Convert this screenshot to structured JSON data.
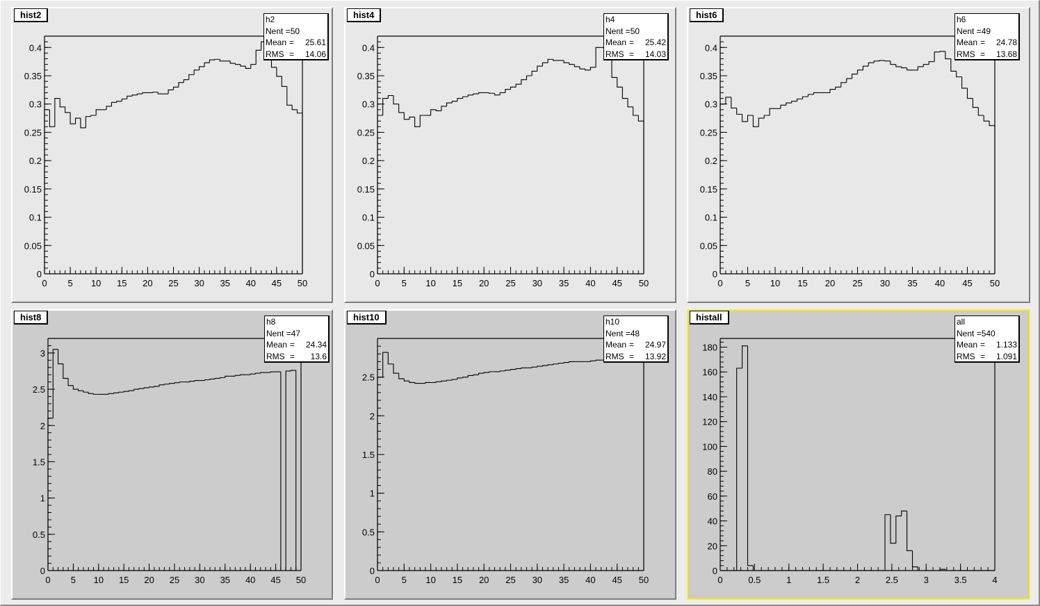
{
  "canvas": {
    "colors": {
      "light_pad": "#e8e8e8",
      "dark_pad": "#cccccc",
      "selected_border": "#f3ea5a"
    }
  },
  "chart_data": [
    {
      "pad_title": "hist2",
      "type": "histogram",
      "shade": "light",
      "stats": {
        "name": "h2",
        "Nent": "50",
        "Mean": "25.61",
        "RMS": "14.06"
      },
      "xlim": [
        0,
        50
      ],
      "ylim": [
        0,
        0.42
      ],
      "xticks": [
        0,
        5,
        10,
        15,
        20,
        25,
        30,
        35,
        40,
        45,
        50
      ],
      "xticklabels": [
        "0",
        "5",
        "10",
        "15",
        "20",
        "25",
        "30",
        "35",
        "40",
        "45",
        "50"
      ],
      "yticks": [
        0,
        0.05,
        0.1,
        0.15,
        0.2,
        0.25,
        0.3,
        0.35,
        0.4
      ],
      "yticklabels": [
        "0",
        "0.05",
        "0.1",
        "0.15",
        "0.2",
        "0.25",
        "0.3",
        "0.35",
        "0.4"
      ],
      "bins": [
        0,
        1,
        2,
        3,
        4,
        5,
        6,
        7,
        8,
        9,
        10,
        11,
        12,
        13,
        14,
        15,
        16,
        17,
        18,
        19,
        20,
        21,
        22,
        23,
        24,
        25,
        26,
        27,
        28,
        29,
        30,
        31,
        32,
        33,
        34,
        35,
        36,
        37,
        38,
        39,
        40,
        41,
        42,
        43,
        44,
        45,
        46,
        47,
        48,
        49,
        50
      ],
      "values": [
        0.29,
        0.26,
        0.31,
        0.295,
        0.285,
        0.265,
        0.275,
        0.258,
        0.278,
        0.28,
        0.29,
        0.29,
        0.296,
        0.303,
        0.305,
        0.309,
        0.314,
        0.316,
        0.318,
        0.32,
        0.32,
        0.321,
        0.318,
        0.318,
        0.325,
        0.33,
        0.338,
        0.343,
        0.352,
        0.36,
        0.366,
        0.373,
        0.378,
        0.379,
        0.376,
        0.376,
        0.372,
        0.37,
        0.367,
        0.363,
        0.37,
        0.395,
        0.41,
        0.385,
        0.365,
        0.349,
        0.331,
        0.298,
        0.29,
        0.284
      ]
    },
    {
      "pad_title": "hist4",
      "type": "histogram",
      "shade": "light",
      "stats": {
        "name": "h4",
        "Nent": "50",
        "Mean": "25.42",
        "RMS": "14.03"
      },
      "xlim": [
        0,
        50
      ],
      "ylim": [
        0,
        0.42
      ],
      "xticks": [
        0,
        5,
        10,
        15,
        20,
        25,
        30,
        35,
        40,
        45,
        50
      ],
      "xticklabels": [
        "0",
        "5",
        "10",
        "15",
        "20",
        "25",
        "30",
        "35",
        "40",
        "45",
        "50"
      ],
      "yticks": [
        0,
        0.05,
        0.1,
        0.15,
        0.2,
        0.25,
        0.3,
        0.35,
        0.4
      ],
      "yticklabels": [
        "0",
        "0.05",
        "0.1",
        "0.15",
        "0.2",
        "0.25",
        "0.3",
        "0.35",
        "0.4"
      ],
      "bins": [
        0,
        1,
        2,
        3,
        4,
        5,
        6,
        7,
        8,
        9,
        10,
        11,
        12,
        13,
        14,
        15,
        16,
        17,
        18,
        19,
        20,
        21,
        22,
        23,
        24,
        25,
        26,
        27,
        28,
        29,
        30,
        31,
        32,
        33,
        34,
        35,
        36,
        37,
        38,
        39,
        40,
        41,
        42,
        43,
        44,
        45,
        46,
        47,
        48,
        49,
        50
      ],
      "values": [
        0.28,
        0.31,
        0.315,
        0.3,
        0.285,
        0.273,
        0.277,
        0.26,
        0.28,
        0.28,
        0.29,
        0.288,
        0.296,
        0.302,
        0.305,
        0.31,
        0.313,
        0.316,
        0.318,
        0.32,
        0.32,
        0.319,
        0.316,
        0.32,
        0.326,
        0.33,
        0.335,
        0.343,
        0.35,
        0.358,
        0.367,
        0.373,
        0.379,
        0.377,
        0.377,
        0.373,
        0.37,
        0.366,
        0.362,
        0.36,
        0.365,
        0.4,
        0.4,
        0.38,
        0.347,
        0.33,
        0.31,
        0.295,
        0.28,
        0.27
      ]
    },
    {
      "pad_title": "hist6",
      "type": "histogram",
      "shade": "light",
      "stats": {
        "name": "h6",
        "Nent": "49",
        "Mean": "24.78",
        "RMS": "13.68"
      },
      "xlim": [
        0,
        50
      ],
      "ylim": [
        0,
        0.42
      ],
      "xticks": [
        0,
        5,
        10,
        15,
        20,
        25,
        30,
        35,
        40,
        45,
        50
      ],
      "xticklabels": [
        "0",
        "5",
        "10",
        "15",
        "20",
        "25",
        "30",
        "35",
        "40",
        "45",
        "50"
      ],
      "yticks": [
        0,
        0.05,
        0.1,
        0.15,
        0.2,
        0.25,
        0.3,
        0.35,
        0.4
      ],
      "yticklabels": [
        "0",
        "0.05",
        "0.1",
        "0.15",
        "0.2",
        "0.25",
        "0.3",
        "0.35",
        "0.4"
      ],
      "bins": [
        0,
        1,
        2,
        3,
        4,
        5,
        6,
        7,
        8,
        9,
        10,
        11,
        12,
        13,
        14,
        15,
        16,
        17,
        18,
        19,
        20,
        21,
        22,
        23,
        24,
        25,
        26,
        27,
        28,
        29,
        30,
        31,
        32,
        33,
        34,
        35,
        36,
        37,
        38,
        39,
        40,
        41,
        42,
        43,
        44,
        45,
        46,
        47,
        48,
        49,
        50
      ],
      "values": [
        0.3,
        0.312,
        0.293,
        0.282,
        0.269,
        0.28,
        0.26,
        0.275,
        0.28,
        0.292,
        0.292,
        0.298,
        0.302,
        0.305,
        0.309,
        0.313,
        0.317,
        0.32,
        0.32,
        0.32,
        0.326,
        0.33,
        0.338,
        0.345,
        0.353,
        0.36,
        0.367,
        0.373,
        0.376,
        0.377,
        0.376,
        0.37,
        0.366,
        0.364,
        0.36,
        0.36,
        0.366,
        0.37,
        0.375,
        0.392,
        0.393,
        0.38,
        0.358,
        0.348,
        0.328,
        0.31,
        0.294,
        0.28,
        0.27,
        0.262,
        0
      ]
    },
    {
      "pad_title": "hist8",
      "type": "histogram",
      "shade": "dark",
      "stats": {
        "name": "h8",
        "Nent": "47",
        "Mean": "24.34",
        "RMS": "13.6"
      },
      "xlim": [
        0,
        50
      ],
      "ylim": [
        0,
        3.2
      ],
      "xticks": [
        0,
        5,
        10,
        15,
        20,
        25,
        30,
        35,
        40,
        45,
        50
      ],
      "xticklabels": [
        "0",
        "5",
        "10",
        "15",
        "20",
        "25",
        "30",
        "35",
        "40",
        "45",
        "50"
      ],
      "yticks": [
        0,
        0.5,
        1,
        1.5,
        2,
        2.5,
        3
      ],
      "yticklabels": [
        "0",
        "0.5",
        "1",
        "1.5",
        "2",
        "2.5",
        "3"
      ],
      "bins": [
        0,
        1,
        2,
        3,
        4,
        5,
        6,
        7,
        8,
        9,
        10,
        11,
        12,
        13,
        14,
        15,
        16,
        17,
        18,
        19,
        20,
        21,
        22,
        23,
        24,
        25,
        26,
        27,
        28,
        29,
        30,
        31,
        32,
        33,
        34,
        35,
        36,
        37,
        38,
        39,
        40,
        41,
        42,
        43,
        44,
        45,
        46,
        47,
        48,
        49,
        50
      ],
      "values": [
        2.1,
        3.05,
        2.85,
        2.65,
        2.55,
        2.5,
        2.48,
        2.46,
        2.44,
        2.43,
        2.43,
        2.43,
        2.44,
        2.45,
        2.46,
        2.47,
        2.48,
        2.5,
        2.51,
        2.52,
        2.53,
        2.54,
        2.56,
        2.57,
        2.58,
        2.59,
        2.6,
        2.6,
        2.61,
        2.62,
        2.62,
        2.63,
        2.64,
        2.65,
        2.66,
        2.68,
        2.68,
        2.69,
        2.7,
        2.7,
        2.71,
        2.72,
        2.73,
        2.73,
        2.74,
        2.74,
        0,
        2.75,
        2.76,
        0,
        0
      ]
    },
    {
      "pad_title": "hist10",
      "type": "histogram",
      "shade": "dark",
      "stats": {
        "name": "h10",
        "Nent": "48",
        "Mean": "24.97",
        "RMS": "13.92"
      },
      "xlim": [
        0,
        50
      ],
      "ylim": [
        0,
        3.0
      ],
      "xticks": [
        0,
        5,
        10,
        15,
        20,
        25,
        30,
        35,
        40,
        45,
        50
      ],
      "xticklabels": [
        "0",
        "5",
        "10",
        "15",
        "20",
        "25",
        "30",
        "35",
        "40",
        "45",
        "50"
      ],
      "yticks": [
        0,
        0.5,
        1,
        1.5,
        2,
        2.5
      ],
      "yticklabels": [
        "0",
        "0.5",
        "1",
        "1.5",
        "2",
        "2.5"
      ],
      "bins": [
        0,
        1,
        2,
        3,
        4,
        5,
        6,
        7,
        8,
        9,
        10,
        11,
        12,
        13,
        14,
        15,
        16,
        17,
        18,
        19,
        20,
        21,
        22,
        23,
        24,
        25,
        26,
        27,
        28,
        29,
        30,
        31,
        32,
        33,
        34,
        35,
        36,
        37,
        38,
        39,
        40,
        41,
        42,
        43,
        44,
        45,
        46,
        47,
        48,
        49,
        50
      ],
      "values": [
        2.5,
        2.82,
        2.67,
        2.55,
        2.48,
        2.45,
        2.43,
        2.42,
        2.42,
        2.43,
        2.43,
        2.44,
        2.45,
        2.46,
        2.47,
        2.49,
        2.5,
        2.52,
        2.53,
        2.55,
        2.56,
        2.57,
        2.57,
        2.58,
        2.59,
        2.6,
        2.61,
        2.62,
        2.62,
        2.63,
        2.64,
        2.65,
        2.66,
        2.67,
        2.68,
        2.69,
        2.7,
        2.7,
        2.7,
        2.7,
        2.71,
        2.72,
        2.72,
        2.73,
        2.74,
        2.75,
        2.76,
        2.77,
        2.78,
        2.8,
        0
      ]
    },
    {
      "pad_title": "histall",
      "type": "histogram",
      "shade": "dark",
      "selected": true,
      "stats": {
        "name": "all",
        "Nent": "540",
        "Mean": "1.133",
        "RMS": "1.091"
      },
      "xlim": [
        0,
        4
      ],
      "ylim": [
        0,
        187
      ],
      "xticks": [
        0,
        0.5,
        1,
        1.5,
        2,
        2.5,
        3,
        3.5,
        4
      ],
      "xticklabels": [
        "0",
        "0.5",
        "1",
        "1.5",
        "2",
        "2.5",
        "3",
        "3.5",
        "4"
      ],
      "yticks": [
        0,
        20,
        40,
        60,
        80,
        100,
        120,
        140,
        160,
        180
      ],
      "yticklabels": [
        "0",
        "20",
        "40",
        "60",
        "80",
        "100",
        "120",
        "140",
        "160",
        "180"
      ],
      "bins": [
        0,
        0.08,
        0.16,
        0.24,
        0.32,
        0.4,
        0.48,
        0.56,
        0.64,
        0.72,
        0.8,
        0.88,
        0.96,
        1.04,
        1.12,
        1.2,
        1.28,
        1.36,
        1.44,
        1.52,
        1.6,
        1.68,
        1.76,
        1.84,
        1.92,
        2.0,
        2.08,
        2.16,
        2.24,
        2.32,
        2.4,
        2.48,
        2.56,
        2.64,
        2.72,
        2.8,
        2.88,
        2.96,
        3.04,
        3.12,
        3.2,
        3.28,
        3.36,
        3.44,
        3.52,
        3.6,
        3.68,
        3.76,
        3.84,
        3.92,
        4.0
      ],
      "values": [
        0,
        0,
        0,
        163,
        181,
        4,
        0,
        0,
        0,
        0,
        0,
        0,
        0,
        0,
        0,
        0,
        0,
        0,
        0,
        0,
        0,
        0,
        0,
        0,
        0,
        0,
        0,
        0,
        0,
        0,
        45,
        22,
        44,
        48,
        16,
        3,
        0,
        0,
        0,
        0,
        1,
        0,
        0,
        0,
        0,
        0,
        0,
        0,
        0,
        0
      ]
    }
  ]
}
